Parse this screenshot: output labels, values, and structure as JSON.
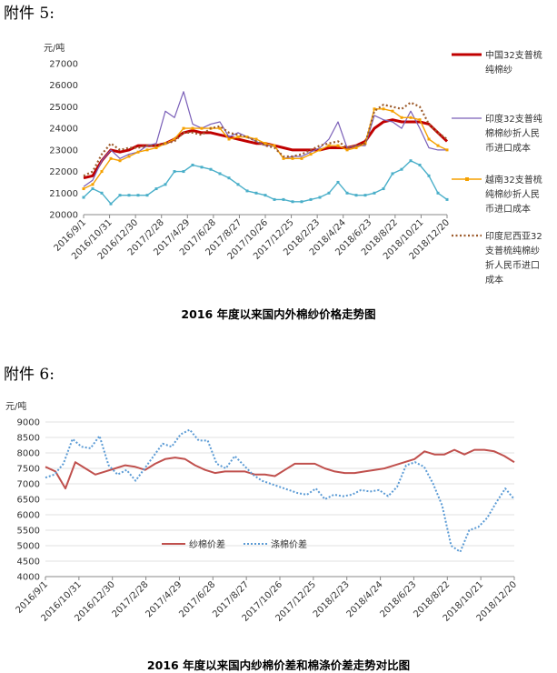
{
  "sections": [
    {
      "heading": "附件 5:",
      "caption": "2016 年度以来国内外棉纱价格走势图"
    },
    {
      "heading": "附件 6:",
      "caption": "2016 年度以来国内纱棉价差和棉涤价差走势对比图"
    }
  ],
  "chart_data": [
    {
      "type": "line",
      "title": "2016 年度以来国内外棉纱价格走势图",
      "unit": "元/吨",
      "ylim": [
        20000,
        27000
      ],
      "yticks": [
        "27000",
        "26000",
        "25000",
        "24000",
        "23000",
        "22000",
        "21000",
        "20000"
      ],
      "x_tick_labels": [
        "2016/9/1",
        "2016/10/31",
        "2016/12/30",
        "2017/2/28",
        "2017/4/29",
        "2017/6/28",
        "2017/8/27",
        "2017/10/26",
        "2017/12/25",
        "2018/2/23",
        "2018/4/24",
        "2018/6/23",
        "2018/8/22",
        "2018/10/21",
        "2018/12/20"
      ],
      "legend_position": "right",
      "series": [
        {
          "name": "中国32支普梳纯棉纱",
          "color": "#c00000",
          "values": [
            21700,
            21800,
            22500,
            23000,
            22900,
            23000,
            23200,
            23200,
            23200,
            23300,
            23500,
            23800,
            23900,
            23800,
            23800,
            23700,
            23600,
            23500,
            23400,
            23300,
            23300,
            23200,
            23100,
            23000,
            23000,
            23000,
            23000,
            23100,
            23100,
            23100,
            23200,
            23400,
            24000,
            24300,
            24400,
            24300,
            24300,
            24300,
            24200,
            23800,
            23400
          ]
        },
        {
          "name": "印度32支普梳纯棉纱折人民币进口成本",
          "color": "#7a5fb8",
          "values": [
            21300,
            21600,
            22500,
            23000,
            22600,
            22800,
            22900,
            23200,
            23300,
            24800,
            24500,
            25700,
            24200,
            24000,
            24200,
            24300,
            23600,
            23800,
            23600,
            23400,
            23200,
            23200,
            22600,
            22700,
            22700,
            22900,
            23100,
            23500,
            24300,
            23100,
            23200,
            23200,
            24600,
            24400,
            24300,
            24000,
            24800,
            24000,
            23100,
            23000,
            23000
          ]
        },
        {
          "name": "越南32支普梳纯棉纱折人民币进口成本",
          "color": "#f5a100",
          "values": [
            21200,
            21400,
            22000,
            22600,
            22500,
            22700,
            22900,
            23000,
            23100,
            23300,
            23500,
            24000,
            24000,
            24000,
            24000,
            24000,
            23500,
            23600,
            23600,
            23500,
            23300,
            23200,
            22600,
            22600,
            22600,
            22800,
            23000,
            23200,
            23200,
            23000,
            23100,
            23300,
            24900,
            24900,
            24800,
            24500,
            24500,
            24400,
            23500,
            23200,
            23000
          ]
        },
        {
          "name": "印度尼西亚32支普梳纯棉纱折人民币进口成本",
          "color": "#9c5a2a",
          "values": [
            21800,
            22000,
            22800,
            23300,
            23000,
            23100,
            23100,
            23200,
            23200,
            23300,
            23400,
            23800,
            23800,
            23700,
            24000,
            24100,
            23800,
            23700,
            23600,
            23400,
            23200,
            23100,
            22700,
            22700,
            22800,
            23000,
            23200,
            23300,
            23400,
            23100,
            23200,
            23300,
            24800,
            25100,
            25000,
            24900,
            25200,
            25000,
            24200,
            23800,
            23500
          ]
        },
        {
          "name": "",
          "color": "#4aafc9",
          "values": [
            20800,
            21200,
            21000,
            20500,
            20900,
            20900,
            20900,
            20900,
            21200,
            21400,
            22000,
            22000,
            22300,
            22200,
            22100,
            21900,
            21700,
            21400,
            21100,
            21000,
            20900,
            20700,
            20700,
            20600,
            20600,
            20700,
            20800,
            21000,
            21500,
            21000,
            20900,
            20900,
            21000,
            21200,
            21900,
            22100,
            22500,
            22300,
            21800,
            21000,
            20700
          ]
        }
      ]
    },
    {
      "type": "line",
      "title": "2016 年度以来国内纱棉价差和棉涤价差走势对比图",
      "unit": "元/吨",
      "ylim": [
        4000,
        9000
      ],
      "yticks": [
        "9000",
        "8500",
        "8000",
        "7500",
        "7000",
        "6500",
        "6000",
        "5500",
        "5000",
        "4500",
        "4000"
      ],
      "x_tick_labels": [
        "2016/9/1",
        "2016/10/31",
        "2016/12/30",
        "2017/2/28",
        "2017/4/29",
        "2017/6/28",
        "2017/8/27",
        "2017/10/26",
        "2017/12/25",
        "2018/2/23",
        "2018/4/24",
        "2018/6/23",
        "2018/8/22",
        "2018/10/21",
        "2018/12/20"
      ],
      "legend_position": "lower-left",
      "series": [
        {
          "name": "纱棉价差",
          "color": "#c0504d",
          "dash": false,
          "values": [
            7550,
            7400,
            6850,
            7700,
            7500,
            7300,
            7400,
            7500,
            7600,
            7550,
            7450,
            7650,
            7800,
            7850,
            7800,
            7600,
            7450,
            7350,
            7400,
            7400,
            7400,
            7300,
            7300,
            7250,
            7450,
            7650,
            7650,
            7650,
            7500,
            7400,
            7350,
            7350,
            7400,
            7450,
            7500,
            7600,
            7700,
            7800,
            8050,
            7950,
            7950,
            8100,
            7950,
            8100,
            8100,
            8050,
            7900,
            7700
          ]
        },
        {
          "name": "涤棉价差",
          "color": "#5b9bd5",
          "dash": true,
          "values": [
            7200,
            7300,
            7650,
            8450,
            8200,
            8150,
            8550,
            7600,
            7300,
            7450,
            7100,
            7500,
            7900,
            8300,
            8200,
            8600,
            8750,
            8400,
            8400,
            7650,
            7500,
            7900,
            7600,
            7300,
            7100,
            7000,
            6900,
            6800,
            6700,
            6650,
            6850,
            6500,
            6650,
            6600,
            6650,
            6800,
            6750,
            6800,
            6600,
            6900,
            7600,
            7700,
            7550,
            7000,
            6300,
            5000,
            4800,
            5500,
            5600,
            5900,
            6400,
            6850,
            6500
          ]
        }
      ]
    }
  ]
}
